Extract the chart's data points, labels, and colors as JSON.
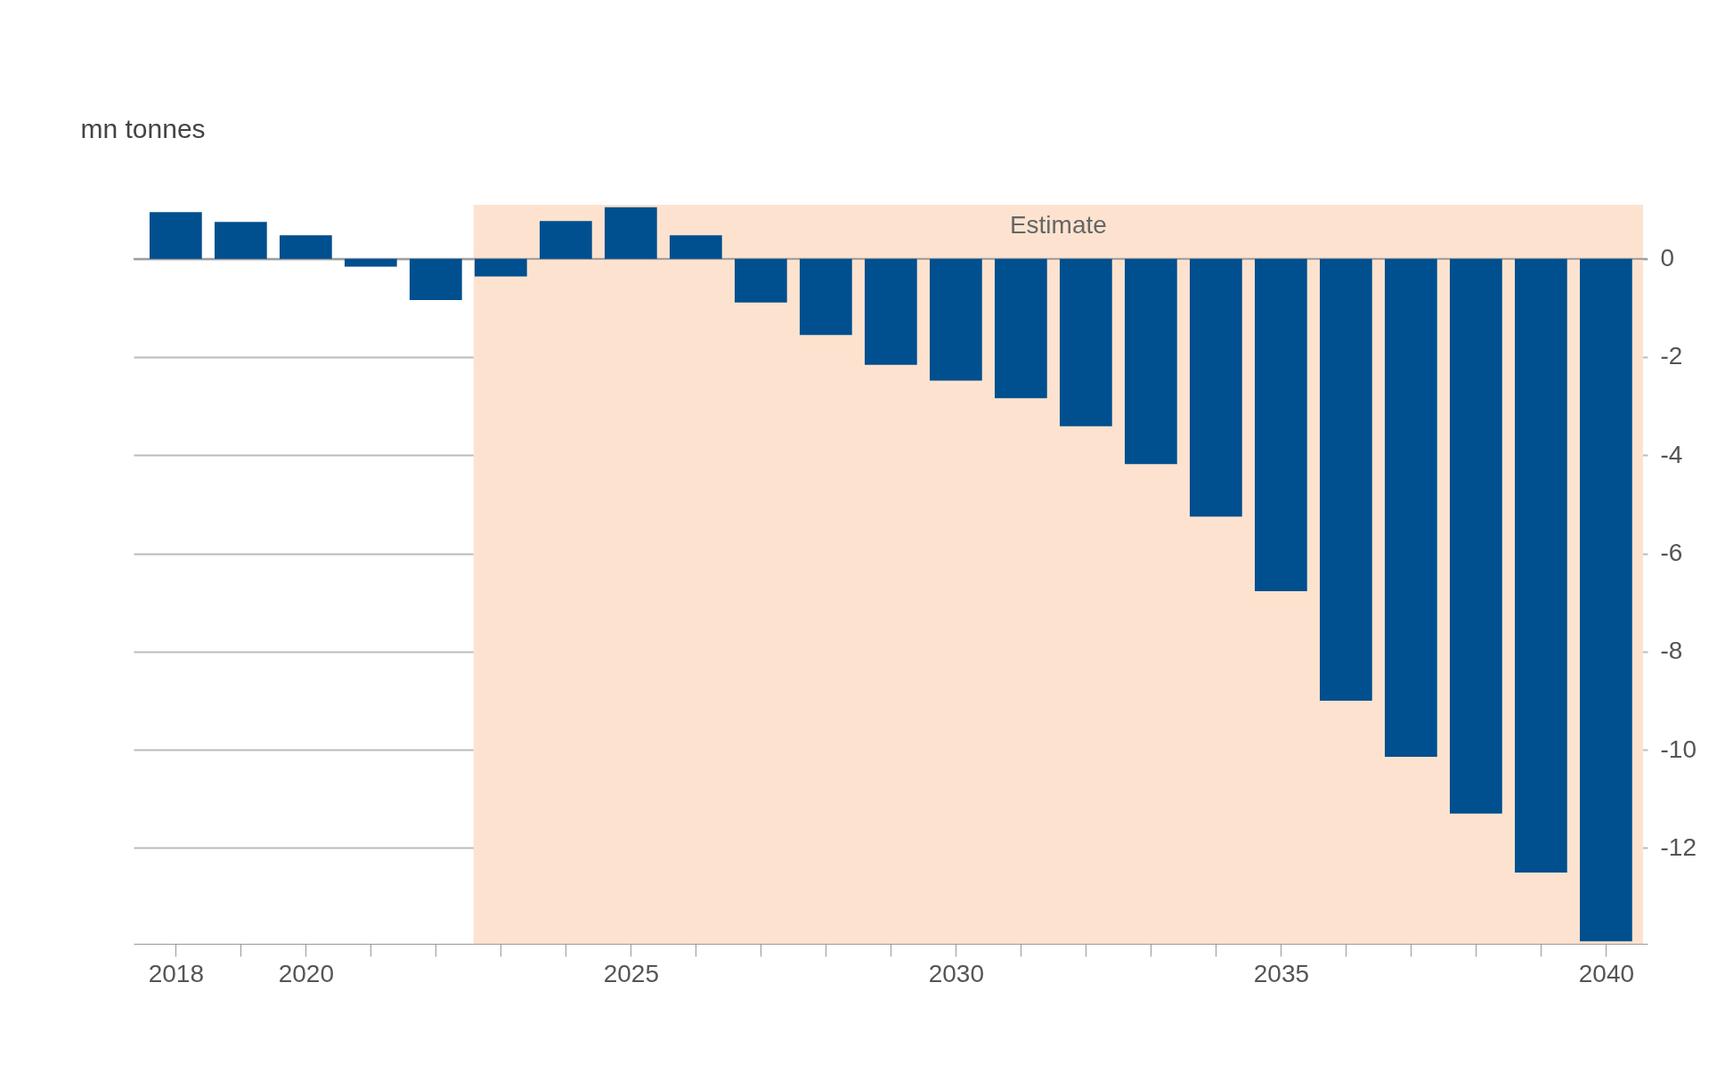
{
  "chart_data": {
    "type": "bar",
    "ylabel": "mn tonnes",
    "x": [
      2018,
      2019,
      2020,
      2021,
      2022,
      2023,
      2024,
      2025,
      2026,
      2027,
      2028,
      2029,
      2030,
      2031,
      2032,
      2033,
      2034,
      2035,
      2036,
      2037,
      2038,
      2039,
      2040
    ],
    "series": [
      {
        "color": "#004f8f",
        "values": [
          0.95,
          0.75,
          0.48,
          -0.16,
          -0.84,
          -0.36,
          0.77,
          1.05,
          0.48,
          -0.89,
          -1.55,
          -2.16,
          -2.48,
          -2.84,
          -3.41,
          -4.18,
          -5.25,
          -6.77,
          -9.0,
          -10.14,
          -11.3,
          -12.5,
          -13.9
        ]
      }
    ],
    "xlim": [
      2017.42,
      2040.57
    ],
    "ylim": [
      -13.95,
      1.1
    ],
    "xticks": [
      2018,
      {
        "value": 2019,
        "label": null
      },
      2020,
      {
        "value": 2021,
        "label": null
      },
      {
        "value": 2022,
        "label": null
      },
      {
        "value": 2023,
        "label": null
      },
      {
        "value": 2024,
        "label": null
      },
      2025,
      {
        "value": 2026,
        "label": null
      },
      {
        "value": 2027,
        "label": null
      },
      {
        "value": 2028,
        "label": null
      },
      {
        "value": 2029,
        "label": null
      },
      2030,
      {
        "value": 2031,
        "label": null
      },
      {
        "value": 2032,
        "label": null
      },
      {
        "value": 2033,
        "label": null
      },
      {
        "value": 2034,
        "label": null
      },
      2035,
      {
        "value": 2036,
        "label": null
      },
      {
        "value": 2037,
        "label": null
      },
      {
        "value": 2038,
        "label": null
      },
      {
        "value": 2039,
        "label": null
      },
      2040
    ],
    "yticks": [
      0,
      -2,
      -4,
      -6,
      -8,
      -10,
      -12
    ],
    "grid": "y",
    "bands": [
      {
        "axis": "x",
        "from": 2022.58,
        "to": 2040.57,
        "label": "Estimate",
        "color": "#fde3cf"
      }
    ]
  }
}
